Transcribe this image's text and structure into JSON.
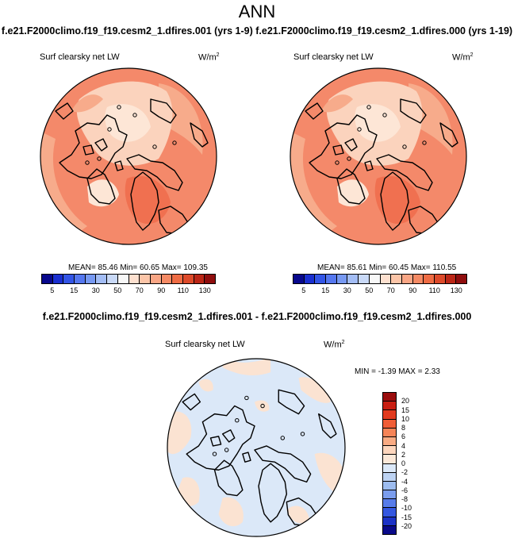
{
  "page": {
    "title": "ANN",
    "case_title": "f.e21.F2000climo.f19_f19.cesm2_1.dfires.001 (yrs 1-9) f.e21.F2000climo.f19_f19.cesm2_1.dfires.000 (yrs 1-19)",
    "diff_title": "f.e21.F2000climo.f19_f19.cesm2_1.dfires.001 - f.e21.F2000climo.f19_f19.cesm2_1.dfires.000"
  },
  "panels": {
    "left": {
      "variable": "Surf clearsky net LW",
      "units_base": "W/m",
      "units_exp": "2",
      "stats_text": "MEAN=  85.46  Min=  60.65  Max= 109.35"
    },
    "right": {
      "variable": "Surf clearsky net LW",
      "units_base": "W/m",
      "units_exp": "2",
      "stats_text": "MEAN=  85.61  Min=  60.45  Max= 110.55"
    },
    "diff": {
      "variable": "Surf clearsky net LW",
      "units_base": "W/m",
      "units_exp": "2",
      "stats_text": "MIN =  -1.39 MAX =   2.33"
    }
  },
  "colorbars": {
    "abs": {
      "colors": [
        "#08088c",
        "#1a2fd0",
        "#3355e6",
        "#5577ef",
        "#7799f2",
        "#a3bdf5",
        "#c9d9f7",
        "#f8f8f8",
        "#fde0cf",
        "#fcc5a8",
        "#f9a685",
        "#f58a64",
        "#ef6c44",
        "#dd4a2a",
        "#bb2616",
        "#8f0d0d"
      ],
      "labels": [
        "5",
        "15",
        "30",
        "50",
        "70",
        "90",
        "110",
        "130"
      ]
    },
    "diff": {
      "colors": [
        "#9a0d0d",
        "#c81e12",
        "#e23a1e",
        "#f05d36",
        "#f68457",
        "#f9ab83",
        "#fdd6bd",
        "#fbe8d8",
        "#dbe8f8",
        "#bdd3f3",
        "#9dbcef",
        "#7b9ded",
        "#577cea",
        "#3457e0",
        "#1c32c6",
        "#0a0a8a"
      ],
      "labels": [
        "20",
        "15",
        "10",
        "8",
        "6",
        "4",
        "2",
        "0",
        "-2",
        "-4",
        "-6",
        "-8",
        "-10",
        "-15",
        "-20"
      ]
    }
  },
  "map_colors": {
    "abs_ocean": "#f4896a",
    "abs_mid": "#f7ab8b",
    "abs_high": "#f07050",
    "abs_low": "#fbd3bd",
    "abs_lowest": "#fde6d6",
    "diff_base": "#dbe8f8",
    "diff_pos": "#fbe3d2",
    "coast": "#000000"
  }
}
